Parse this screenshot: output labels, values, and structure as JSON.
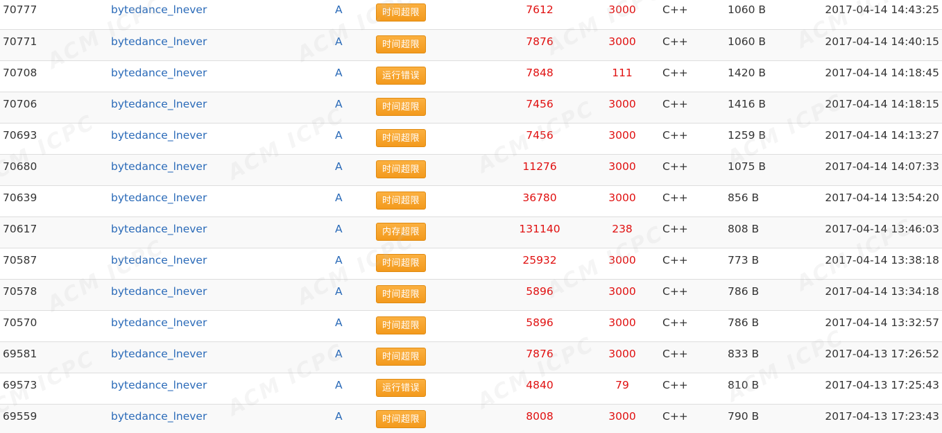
{
  "watermark": "ACM ICPC",
  "colors": {
    "link": "#2a6ab8",
    "red_value": "#e01010",
    "badge": "#f5a025"
  },
  "rows": [
    {
      "id": "70777",
      "user": "bytedance_lnever",
      "problem": "A",
      "status": "时间超限",
      "time": "7612",
      "memory": "3000",
      "lang": "C++",
      "length": "1060 B",
      "date": "2017-04-14 14:43:25"
    },
    {
      "id": "70771",
      "user": "bytedance_lnever",
      "problem": "A",
      "status": "时间超限",
      "time": "7876",
      "memory": "3000",
      "lang": "C++",
      "length": "1060 B",
      "date": "2017-04-14 14:40:15"
    },
    {
      "id": "70708",
      "user": "bytedance_lnever",
      "problem": "A",
      "status": "运行错误",
      "time": "7848",
      "memory": "111",
      "lang": "C++",
      "length": "1420 B",
      "date": "2017-04-14 14:18:45"
    },
    {
      "id": "70706",
      "user": "bytedance_lnever",
      "problem": "A",
      "status": "时间超限",
      "time": "7456",
      "memory": "3000",
      "lang": "C++",
      "length": "1416 B",
      "date": "2017-04-14 14:18:15"
    },
    {
      "id": "70693",
      "user": "bytedance_lnever",
      "problem": "A",
      "status": "时间超限",
      "time": "7456",
      "memory": "3000",
      "lang": "C++",
      "length": "1259 B",
      "date": "2017-04-14 14:13:27"
    },
    {
      "id": "70680",
      "user": "bytedance_lnever",
      "problem": "A",
      "status": "时间超限",
      "time": "11276",
      "memory": "3000",
      "lang": "C++",
      "length": "1075 B",
      "date": "2017-04-14 14:07:33"
    },
    {
      "id": "70639",
      "user": "bytedance_lnever",
      "problem": "A",
      "status": "时间超限",
      "time": "36780",
      "memory": "3000",
      "lang": "C++",
      "length": "856 B",
      "date": "2017-04-14 13:54:20"
    },
    {
      "id": "70617",
      "user": "bytedance_lnever",
      "problem": "A",
      "status": "内存超限",
      "time": "131140",
      "memory": "238",
      "lang": "C++",
      "length": "808 B",
      "date": "2017-04-14 13:46:03"
    },
    {
      "id": "70587",
      "user": "bytedance_lnever",
      "problem": "A",
      "status": "时间超限",
      "time": "25932",
      "memory": "3000",
      "lang": "C++",
      "length": "773 B",
      "date": "2017-04-14 13:38:18"
    },
    {
      "id": "70578",
      "user": "bytedance_lnever",
      "problem": "A",
      "status": "时间超限",
      "time": "5896",
      "memory": "3000",
      "lang": "C++",
      "length": "786 B",
      "date": "2017-04-14 13:34:18"
    },
    {
      "id": "70570",
      "user": "bytedance_lnever",
      "problem": "A",
      "status": "时间超限",
      "time": "5896",
      "memory": "3000",
      "lang": "C++",
      "length": "786 B",
      "date": "2017-04-14 13:32:57"
    },
    {
      "id": "69581",
      "user": "bytedance_lnever",
      "problem": "A",
      "status": "时间超限",
      "time": "7876",
      "memory": "3000",
      "lang": "C++",
      "length": "833 B",
      "date": "2017-04-13 17:26:52"
    },
    {
      "id": "69573",
      "user": "bytedance_lnever",
      "problem": "A",
      "status": "运行错误",
      "time": "4840",
      "memory": "79",
      "lang": "C++",
      "length": "810 B",
      "date": "2017-04-13 17:25:43"
    },
    {
      "id": "69559",
      "user": "bytedance_lnever",
      "problem": "A",
      "status": "时间超限",
      "time": "8008",
      "memory": "3000",
      "lang": "C++",
      "length": "790 B",
      "date": "2017-04-13 17:23:43"
    }
  ]
}
